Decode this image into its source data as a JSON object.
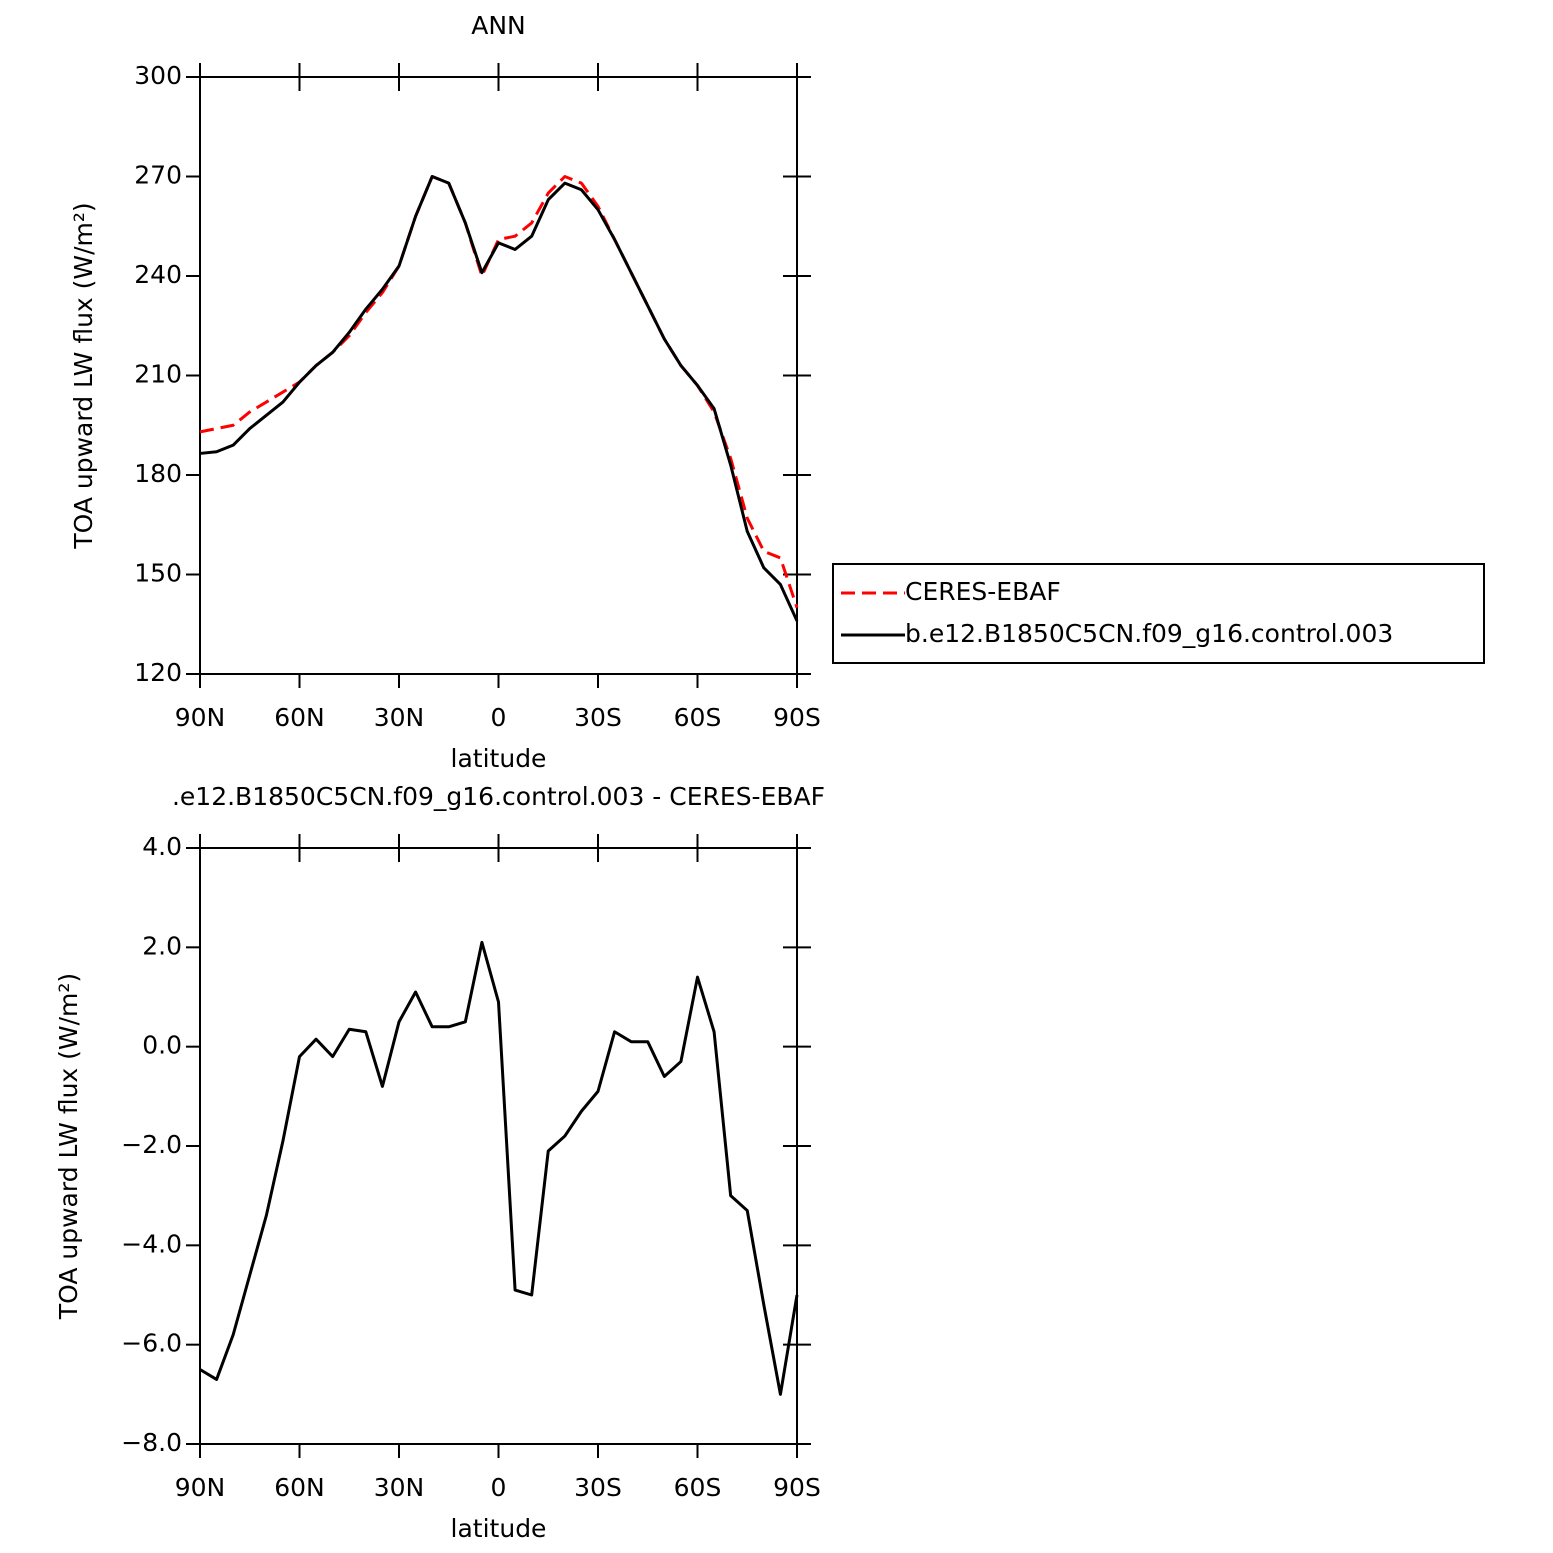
{
  "chart_data": [
    {
      "type": "line",
      "title": "ANN",
      "xlabel": "latitude",
      "ylabel": "TOA upward LW flux (W/m²)",
      "x": [
        90,
        85,
        80,
        75,
        70,
        65,
        60,
        55,
        50,
        45,
        40,
        35,
        30,
        25,
        20,
        15,
        10,
        5,
        0,
        -5,
        -10,
        -15,
        -20,
        -25,
        -30,
        -35,
        -40,
        -45,
        -50,
        -55,
        -60,
        -65,
        -70,
        -75,
        -80,
        -85,
        -90
      ],
      "series": [
        {
          "name": "CERES-EBAF",
          "color": "#ff0000",
          "linestyle": "dashed",
          "values": [
            193,
            194,
            195,
            199,
            202,
            205,
            208,
            213,
            217,
            222,
            229,
            235,
            243,
            258,
            270,
            268,
            256,
            240,
            251,
            252,
            256,
            265,
            270,
            268,
            261,
            251,
            241,
            231,
            221,
            213,
            207,
            199,
            185,
            167,
            157,
            155,
            140
          ]
        },
        {
          "name": "b.e12.B1850C5CN.f09_g16.control.003",
          "color": "#000000",
          "linestyle": "solid",
          "values": [
            186.5,
            187,
            189,
            194,
            198,
            202,
            208,
            213,
            217,
            223,
            230,
            236,
            243,
            258,
            270,
            268,
            256,
            241,
            250,
            248,
            252,
            263,
            268,
            266,
            260,
            251,
            241,
            231,
            221,
            213,
            207,
            200,
            183,
            163,
            152,
            147,
            136
          ]
        }
      ],
      "xlim": [
        90,
        -90
      ],
      "xticks": [
        {
          "value": 90,
          "label": "90N"
        },
        {
          "value": 60,
          "label": "60N"
        },
        {
          "value": 30,
          "label": "30N"
        },
        0,
        {
          "value": -30,
          "label": "30S"
        },
        {
          "value": -60,
          "label": "60S"
        },
        {
          "value": -90,
          "label": "90S"
        }
      ],
      "ylim": [
        120,
        300
      ],
      "yticks": [
        120,
        150,
        180,
        210,
        240,
        270,
        300
      ],
      "legend": "right"
    },
    {
      "type": "line",
      "title": ".e12.B1850C5CN.f09_g16.control.003 - CERES-EBAF",
      "xlabel": "latitude",
      "ylabel": "TOA upward LW flux (W/m²)",
      "x": [
        90,
        85,
        80,
        75,
        70,
        65,
        60,
        55,
        50,
        45,
        40,
        35,
        30,
        25,
        20,
        15,
        10,
        5,
        0,
        -5,
        -10,
        -15,
        -20,
        -25,
        -30,
        -35,
        -40,
        -45,
        -50,
        -55,
        -60,
        -65,
        -70,
        -75,
        -80,
        -85,
        -90
      ],
      "values": [
        -6.5,
        -6.7,
        -5.8,
        -4.6,
        -3.4,
        -1.9,
        -0.2,
        0.15,
        -0.2,
        0.35,
        0.3,
        -0.8,
        0.5,
        1.1,
        0.4,
        0.4,
        0.5,
        2.1,
        0.9,
        -4.9,
        -5.0,
        -2.1,
        -1.8,
        -1.3,
        -0.9,
        0.3,
        0.1,
        0.1,
        -0.6,
        -0.3,
        1.4,
        0.3,
        -3.0,
        -3.3,
        -5.2,
        -7.0,
        -5.0
      ],
      "color": "#000000",
      "xlim": [
        90,
        -90
      ],
      "xticks": [
        {
          "value": 90,
          "label": "90N"
        },
        {
          "value": 60,
          "label": "60N"
        },
        {
          "value": 30,
          "label": "30N"
        },
        0,
        {
          "value": -30,
          "label": "30S"
        },
        {
          "value": -60,
          "label": "60S"
        },
        {
          "value": -90,
          "label": "90S"
        }
      ],
      "ylim": [
        -8,
        4
      ],
      "yticks": [
        {
          "value": -8,
          "label": "−8.0"
        },
        {
          "value": -6,
          "label": "−6.0"
        },
        {
          "value": -4,
          "label": "−4.0"
        },
        {
          "value": -2,
          "label": "−2.0"
        },
        {
          "value": 0,
          "label": "0.0"
        },
        {
          "value": 2,
          "label": "2.0"
        },
        {
          "value": 4,
          "label": "4.0"
        }
      ]
    }
  ]
}
